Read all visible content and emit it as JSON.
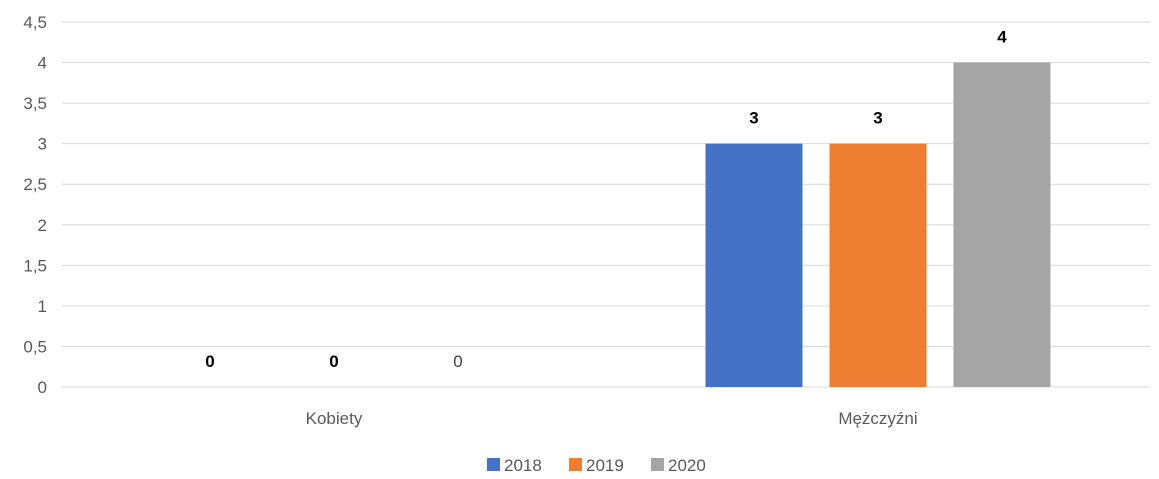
{
  "chart_data": {
    "type": "bar",
    "categories": [
      "Kobiety",
      "Mężczyźni"
    ],
    "series": [
      {
        "name": "2018",
        "values": [
          0,
          3
        ],
        "color": "#4472C4",
        "labels": [
          "0",
          "3"
        ],
        "label_bold": true
      },
      {
        "name": "2019",
        "values": [
          0,
          3
        ],
        "color": "#ED7D31",
        "labels": [
          "0",
          "3"
        ],
        "label_bold": true
      },
      {
        "name": "2020",
        "values": [
          0,
          4
        ],
        "color": "#A5A5A5",
        "labels": [
          "0",
          "4"
        ],
        "label_bold_by_point": [
          false,
          true
        ]
      }
    ],
    "y_ticks": [
      "0",
      "0,5",
      "1",
      "1,5",
      "2",
      "2,5",
      "3",
      "3,5",
      "4",
      "4,5"
    ],
    "ylim": [
      0,
      4.5
    ],
    "grid": true,
    "legend_position": "bottom"
  }
}
